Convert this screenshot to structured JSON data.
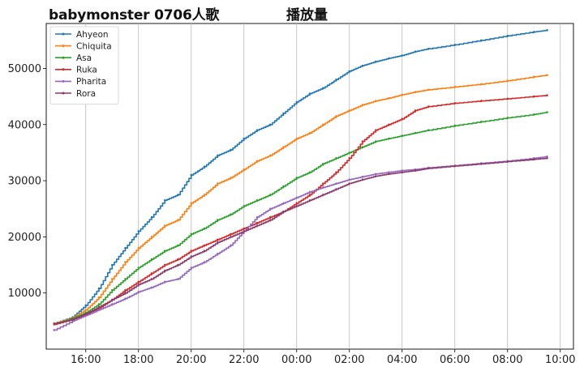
{
  "header": {
    "title_main": "babymonster 0706人歌",
    "title_sub": "播放量"
  },
  "chart_data": {
    "type": "line",
    "title": "babymonster 0706人歌 播放量",
    "xlabel": "",
    "ylabel": "",
    "x_unit": "hour_of_day_continuing_past_midnight",
    "x_ticks": [
      16,
      18,
      20,
      22,
      24,
      26,
      28,
      30,
      32,
      34
    ],
    "x_tick_labels": [
      "16:00",
      "18:00",
      "20:00",
      "22:00",
      "00:00",
      "02:00",
      "04:00",
      "06:00",
      "08:00",
      "10:00"
    ],
    "xlim": [
      14.5,
      34.5
    ],
    "y_ticks": [
      10000,
      20000,
      30000,
      40000,
      50000
    ],
    "y_tick_labels": [
      "10000",
      "20000",
      "30000",
      "40000",
      "50000"
    ],
    "ylim": [
      0,
      58000
    ],
    "grid": "x-only",
    "legend": "top-left",
    "series": [
      {
        "name": "Ahyeon",
        "color": "#1f77b4",
        "x": [
          14.8,
          15.5,
          16.0,
          16.5,
          17.0,
          17.5,
          18.0,
          18.5,
          19.0,
          19.5,
          20.0,
          20.5,
          21.0,
          21.5,
          22.0,
          22.5,
          23.0,
          23.5,
          24.0,
          24.5,
          25.0,
          25.5,
          26.0,
          26.5,
          27.0,
          27.5,
          28.0,
          28.5,
          29.0,
          30.0,
          31.0,
          32.0,
          33.0,
          33.5
        ],
        "y": [
          4600,
          5700,
          7800,
          10800,
          15000,
          18000,
          21000,
          23500,
          26500,
          27500,
          31000,
          32500,
          34500,
          35500,
          37500,
          39000,
          40000,
          42000,
          44000,
          45500,
          46500,
          48000,
          49500,
          50500,
          51200,
          51800,
          52300,
          53000,
          53500,
          54200,
          55000,
          55800,
          56500,
          56800
        ]
      },
      {
        "name": "Chiquita",
        "color": "#ff7f0e",
        "x": [
          14.8,
          15.5,
          16.0,
          16.5,
          17.0,
          17.5,
          18.0,
          18.5,
          19.0,
          19.5,
          20.0,
          20.5,
          21.0,
          21.5,
          22.0,
          22.5,
          23.0,
          23.5,
          24.0,
          24.5,
          25.0,
          25.5,
          26.0,
          26.5,
          27.0,
          27.5,
          28.0,
          28.5,
          29.0,
          30.0,
          31.0,
          32.0,
          33.0,
          33.5
        ],
        "y": [
          4600,
          5600,
          7000,
          9200,
          12500,
          15500,
          18000,
          20000,
          22000,
          23000,
          26000,
          27500,
          29500,
          30500,
          32000,
          33500,
          34500,
          36000,
          37500,
          38500,
          40000,
          41500,
          42500,
          43500,
          44200,
          44700,
          45300,
          45800,
          46200,
          46700,
          47200,
          47800,
          48500,
          48800
        ]
      },
      {
        "name": "Asa",
        "color": "#2ca02c",
        "x": [
          14.8,
          15.5,
          16.0,
          16.5,
          17.0,
          17.5,
          18.0,
          18.5,
          19.0,
          19.5,
          20.0,
          20.5,
          21.0,
          21.5,
          22.0,
          22.5,
          23.0,
          23.5,
          24.0,
          24.5,
          25.0,
          25.5,
          26.0,
          26.5,
          27.0,
          27.5,
          28.0,
          28.5,
          29.0,
          30.0,
          31.0,
          32.0,
          33.0,
          33.5
        ],
        "y": [
          4500,
          5500,
          6500,
          8000,
          10500,
          12500,
          14500,
          16000,
          17500,
          18500,
          20500,
          21500,
          23000,
          24000,
          25500,
          26500,
          27500,
          29000,
          30500,
          31500,
          33000,
          34000,
          35000,
          36000,
          37000,
          37500,
          38000,
          38500,
          39000,
          39800,
          40500,
          41200,
          41800,
          42200
        ]
      },
      {
        "name": "Ruka",
        "color": "#d62728",
        "x": [
          14.8,
          15.5,
          16.0,
          16.5,
          17.0,
          17.5,
          18.0,
          18.5,
          19.0,
          19.5,
          20.0,
          20.5,
          21.0,
          21.5,
          22.0,
          22.5,
          23.0,
          23.5,
          24.0,
          24.5,
          25.0,
          25.5,
          26.0,
          26.5,
          27.0,
          27.5,
          28.0,
          28.5,
          29.0,
          30.0,
          31.0,
          32.0,
          33.0,
          33.5
        ],
        "y": [
          4400,
          5300,
          6200,
          7300,
          8800,
          10500,
          12000,
          13500,
          15000,
          16000,
          17500,
          18500,
          19500,
          20500,
          21500,
          22500,
          23500,
          24500,
          26000,
          27500,
          29500,
          31500,
          34000,
          37000,
          39000,
          40000,
          41000,
          42500,
          43200,
          43800,
          44200,
          44600,
          45000,
          45200
        ]
      },
      {
        "name": "Pharita",
        "color": "#9467bd",
        "x": [
          14.8,
          15.5,
          16.0,
          16.5,
          17.0,
          17.5,
          18.0,
          18.5,
          19.0,
          19.5,
          20.0,
          20.5,
          21.0,
          21.5,
          22.0,
          22.5,
          23.0,
          23.5,
          24.0,
          24.5,
          25.0,
          25.5,
          26.0,
          26.5,
          27.0,
          27.5,
          28.0,
          28.5,
          29.0,
          30.0,
          31.0,
          32.0,
          33.0,
          33.5
        ],
        "y": [
          3400,
          5000,
          6000,
          7000,
          8000,
          9000,
          10200,
          11000,
          12000,
          12500,
          14500,
          15500,
          17000,
          18500,
          21000,
          23500,
          25000,
          26000,
          27000,
          28000,
          28800,
          29500,
          30200,
          30700,
          31200,
          31500,
          31800,
          32000,
          32300,
          32700,
          33100,
          33500,
          34000,
          34300
        ]
      },
      {
        "name": "Rora",
        "color": "#8c3a6b",
        "x": [
          14.8,
          15.5,
          16.0,
          16.5,
          17.0,
          17.5,
          18.0,
          18.5,
          19.0,
          19.5,
          20.0,
          20.5,
          21.0,
          21.5,
          22.0,
          22.5,
          23.0,
          23.5,
          24.0,
          24.5,
          25.0,
          25.5,
          26.0,
          26.5,
          27.0,
          27.5,
          28.0,
          28.5,
          29.0,
          30.0,
          31.0,
          32.0,
          33.0,
          33.5
        ],
        "y": [
          4500,
          5300,
          6300,
          7500,
          8800,
          10000,
          11500,
          12500,
          14000,
          15000,
          16500,
          17500,
          19000,
          20000,
          21000,
          22000,
          23000,
          24500,
          25500,
          26500,
          27500,
          28500,
          29500,
          30200,
          30800,
          31200,
          31500,
          31800,
          32200,
          32600,
          33000,
          33400,
          33800,
          34000
        ]
      }
    ]
  }
}
